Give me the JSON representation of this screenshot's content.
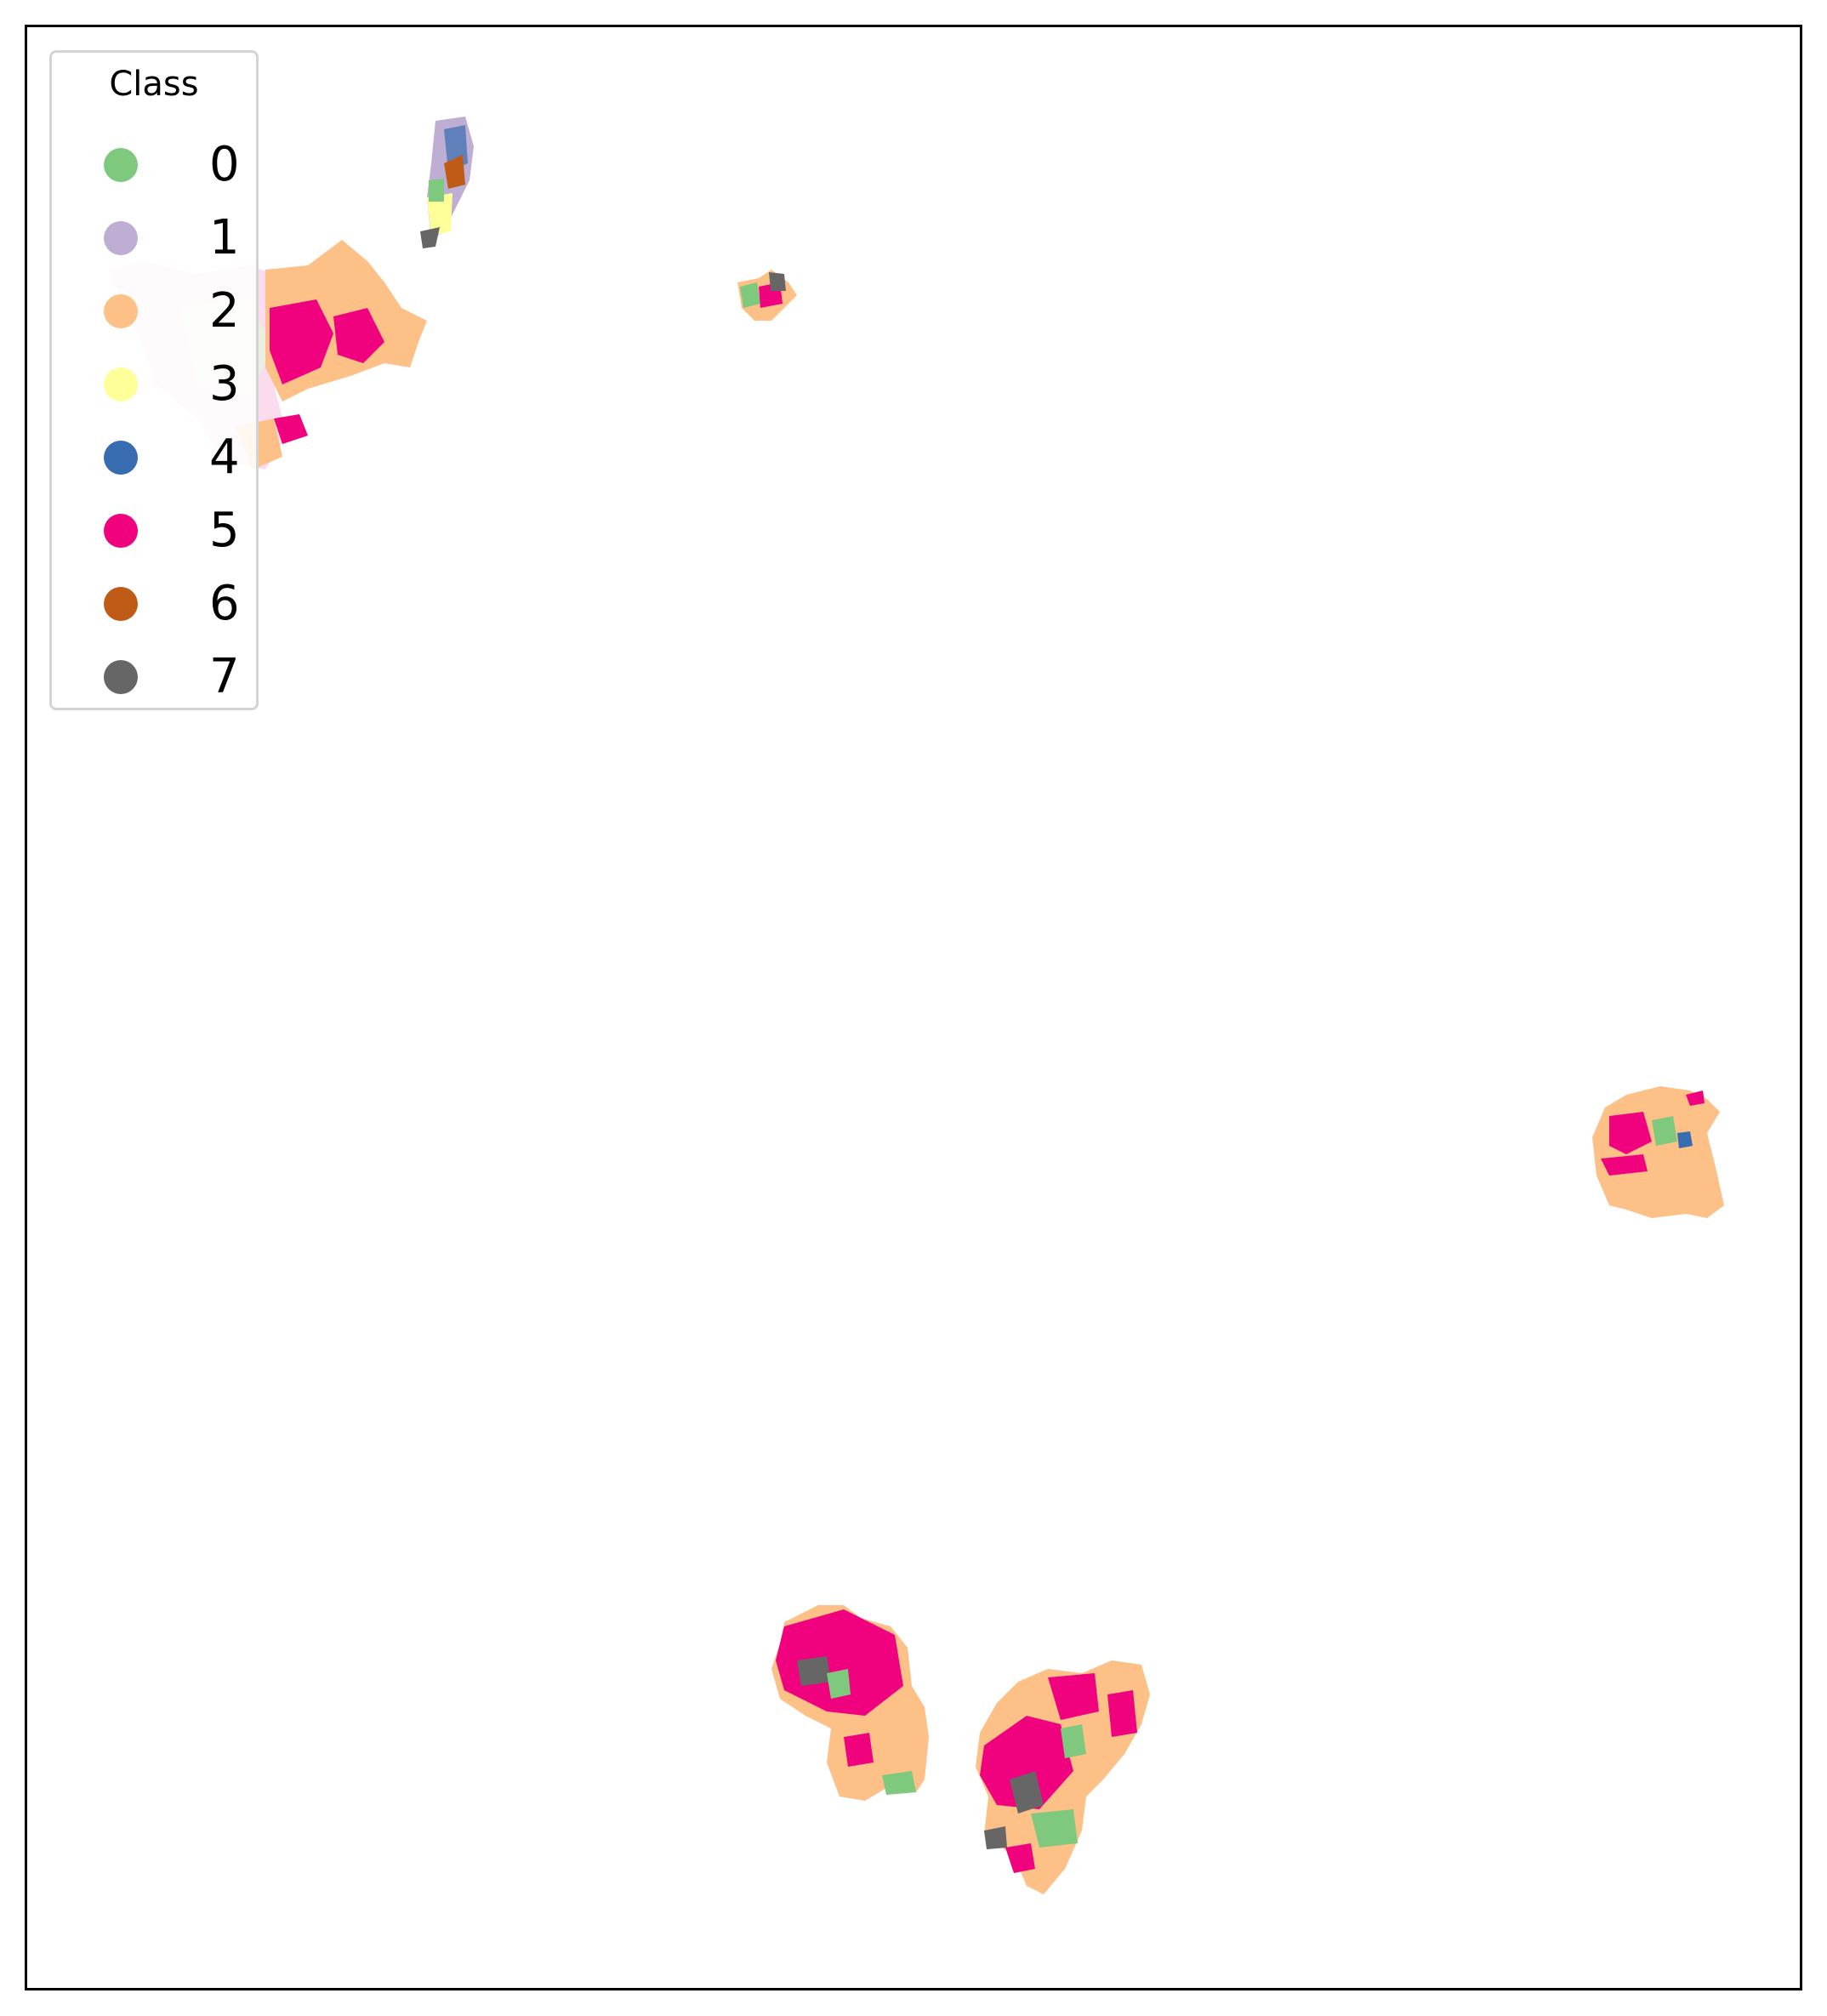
{
  "legend": {
    "title": "Class",
    "items": [
      {
        "label": "0",
        "color": "#7fc97f"
      },
      {
        "label": "1",
        "color": "#beaed4"
      },
      {
        "label": "2",
        "color": "#fdc086"
      },
      {
        "label": "3",
        "color": "#ffff99"
      },
      {
        "label": "4",
        "color": "#386cb0"
      },
      {
        "label": "5",
        "color": "#f0027f"
      },
      {
        "label": "6",
        "color": "#bf5b17"
      },
      {
        "label": "7",
        "color": "#666666"
      }
    ]
  },
  "map": {
    "frame": "plain box, no axes or ticks",
    "regions": [
      {
        "name": "top-left large region",
        "dominant_classes": [
          "2",
          "5"
        ],
        "faded_overlay": true
      },
      {
        "name": "top narrow strip",
        "dominant_classes": [
          "0",
          "3",
          "4",
          "6",
          "7"
        ]
      },
      {
        "name": "top center small region",
        "dominant_classes": [
          "0",
          "5",
          "7"
        ]
      },
      {
        "name": "right region",
        "dominant_classes": [
          "2",
          "5",
          "0",
          "4"
        ]
      },
      {
        "name": "bottom-left region",
        "dominant_classes": [
          "5",
          "2",
          "7",
          "0"
        ]
      },
      {
        "name": "bottom-right region",
        "dominant_classes": [
          "2",
          "5",
          "0",
          "7"
        ]
      }
    ]
  }
}
